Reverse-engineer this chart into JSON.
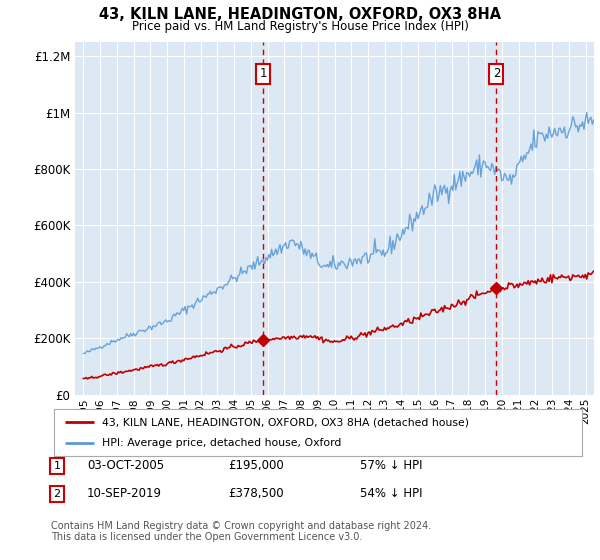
{
  "title": "43, KILN LANE, HEADINGTON, OXFORD, OX3 8HA",
  "subtitle": "Price paid vs. HM Land Registry's House Price Index (HPI)",
  "background_color": "#ffffff",
  "plot_bg_color": "#dce9f5",
  "legend_line1": "43, KILN LANE, HEADINGTON, OXFORD, OX3 8HA (detached house)",
  "legend_line2": "HPI: Average price, detached house, Oxford",
  "annotation1": {
    "label": "1",
    "date": "03-OCT-2005",
    "price": "£195,000",
    "pct": "57% ↓ HPI",
    "x_year": 2005.75,
    "y_val": 195000
  },
  "annotation2": {
    "label": "2",
    "date": "10-SEP-2019",
    "price": "£378,500",
    "pct": "54% ↓ HPI",
    "x_year": 2019.67,
    "y_val": 378500
  },
  "footer": "Contains HM Land Registry data © Crown copyright and database right 2024.\nThis data is licensed under the Open Government Licence v3.0.",
  "hpi_color": "#5b9bd5",
  "sale_color": "#c00000",
  "dashed_line_color": "#cc0000",
  "ylim": [
    0,
    1250000
  ],
  "yticks": [
    0,
    200000,
    400000,
    600000,
    800000,
    1000000,
    1200000
  ],
  "ylabels": [
    "£0",
    "£200K",
    "£400K",
    "£600K",
    "£800K",
    "£1M",
    "£1.2M"
  ],
  "xlim_start": 1994.5,
  "xlim_end": 2025.5
}
